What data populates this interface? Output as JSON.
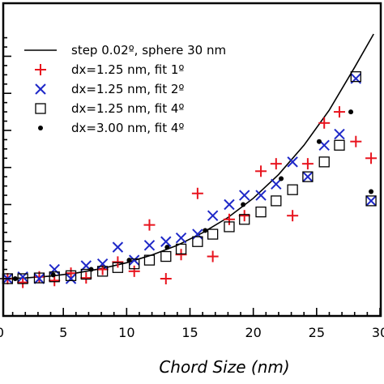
{
  "chart_data": {
    "type": "scatter",
    "title": "",
    "xlabel": "Chord Size (nm)",
    "ylabel": "",
    "xlim": [
      0,
      30
    ],
    "ylim": [
      0,
      6.6
    ],
    "xticks": [
      0,
      5,
      10,
      15,
      20,
      25,
      30
    ],
    "grid": false,
    "legend_position": "top-left",
    "series": [
      {
        "name": "step 0.02º, sphere 30 nm",
        "marker": "line",
        "color": "#000000",
        "x": [
          0,
          2,
          4,
          6,
          8,
          10,
          12,
          14,
          16,
          18,
          20,
          22,
          24,
          26,
          28,
          29.5
        ],
        "y": [
          0,
          0.02,
          0.07,
          0.15,
          0.27,
          0.43,
          0.64,
          0.9,
          1.24,
          1.65,
          2.17,
          2.81,
          3.6,
          4.55,
          5.7,
          6.6
        ]
      },
      {
        "name": "dx=1.25 nm, fit 1º",
        "marker": "plus",
        "color": "#e8141e",
        "x": [
          0.6,
          1.8,
          3.1,
          4.3,
          5.6,
          6.8,
          8.1,
          9.3,
          10.6,
          11.8,
          13.1,
          14.3,
          15.6,
          16.8,
          18.1,
          19.3,
          20.6,
          21.8,
          23.1,
          24.3,
          25.6,
          26.8,
          28.1,
          29.3
        ],
        "y": [
          0.0,
          -0.1,
          0.05,
          -0.05,
          0.15,
          0.02,
          0.25,
          0.45,
          0.2,
          1.45,
          0.0,
          0.65,
          2.3,
          0.6,
          1.6,
          1.7,
          2.9,
          3.1,
          1.7,
          3.1,
          4.2,
          4.5,
          3.7,
          3.25
        ]
      },
      {
        "name": "dx=1.25 nm, fit 2º",
        "marker": "cross",
        "color": "#1e28c8",
        "x": [
          0.6,
          1.8,
          3.1,
          4.3,
          5.6,
          6.8,
          8.1,
          9.3,
          10.6,
          11.8,
          13.1,
          14.3,
          15.6,
          16.8,
          18.1,
          19.3,
          20.6,
          21.8,
          23.1,
          24.3,
          25.6,
          26.8,
          28.1,
          29.3
        ],
        "y": [
          0.0,
          0.05,
          0.0,
          0.25,
          0.0,
          0.35,
          0.4,
          0.85,
          0.5,
          0.9,
          1.0,
          1.1,
          1.2,
          1.7,
          2.0,
          2.25,
          2.25,
          2.55,
          3.15,
          2.75,
          3.6,
          3.9,
          5.4,
          2.1
        ]
      },
      {
        "name": "dx=1.25 nm, fit 4º",
        "marker": "square",
        "color": "#000000",
        "x": [
          0.6,
          1.8,
          3.1,
          4.3,
          5.6,
          6.8,
          8.1,
          9.3,
          10.6,
          11.8,
          13.1,
          14.3,
          15.6,
          16.8,
          18.1,
          19.3,
          20.6,
          21.8,
          23.1,
          24.3,
          25.6,
          26.8,
          28.1,
          29.3
        ],
        "y": [
          0.0,
          0.0,
          0.02,
          0.05,
          0.08,
          0.12,
          0.2,
          0.3,
          0.4,
          0.5,
          0.6,
          0.8,
          1.0,
          1.2,
          1.4,
          1.6,
          1.8,
          2.1,
          2.4,
          2.75,
          3.15,
          3.6,
          5.45,
          2.1
        ]
      },
      {
        "name": "dx=3.00 nm, fit 4º",
        "marker": "dot",
        "color": "#000000",
        "x": [
          1.2,
          4.2,
          7.2,
          10.2,
          13.2,
          16.2,
          19.2,
          22.2,
          25.2,
          27.7,
          29.3
        ],
        "y": [
          0.0,
          0.1,
          0.25,
          0.5,
          0.85,
          1.3,
          2.0,
          2.7,
          3.7,
          4.5,
          2.35
        ]
      }
    ]
  }
}
